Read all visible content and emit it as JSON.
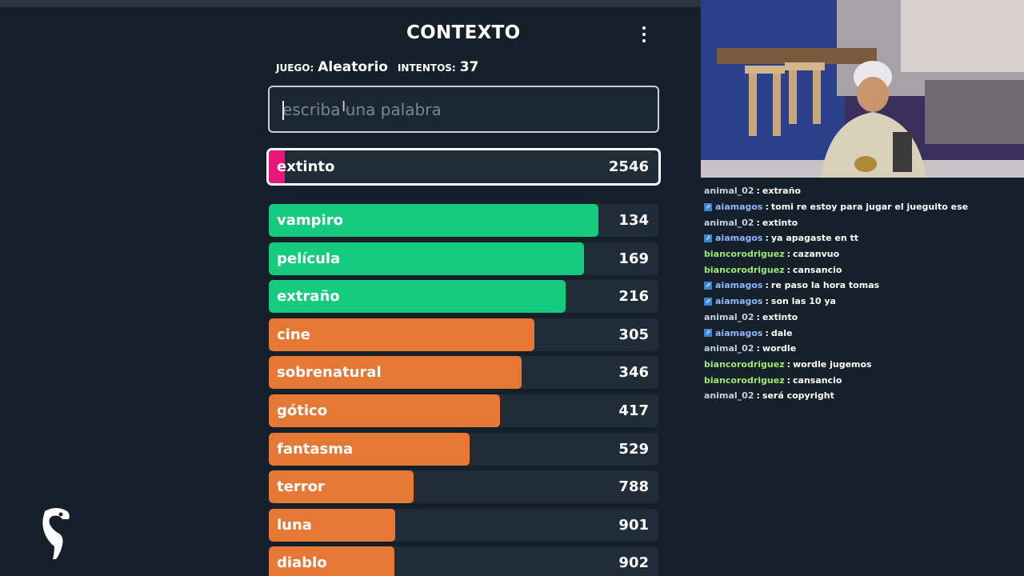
{
  "game": {
    "title": "CONTEXTO",
    "juego_label": "JUEGO:",
    "juego_value": "Aleatorio",
    "intentos_label": "INTENTOS:",
    "intentos_value": "37",
    "input_placeholder": "escriba una palabra",
    "current_guess": {
      "word": "extinto",
      "rank": "2546",
      "color": "#e8157a"
    },
    "guesses": [
      {
        "word": "vampiro",
        "rank": "134",
        "fill": 0.846,
        "color": "#15cc7e"
      },
      {
        "word": "película",
        "rank": "169",
        "fill": 0.809,
        "color": "#15cc7e"
      },
      {
        "word": "extraño",
        "rank": "216",
        "fill": 0.762,
        "color": "#15cc7e"
      },
      {
        "word": "cine",
        "rank": "305",
        "fill": 0.682,
        "color": "#e67835"
      },
      {
        "word": "sobrenatural",
        "rank": "346",
        "fill": 0.649,
        "color": "#e67835"
      },
      {
        "word": "gótico",
        "rank": "417",
        "fill": 0.593,
        "color": "#e67835"
      },
      {
        "word": "fantasma",
        "rank": "529",
        "fill": 0.515,
        "color": "#e67835"
      },
      {
        "word": "terror",
        "rank": "788",
        "fill": 0.372,
        "color": "#e67835"
      },
      {
        "word": "luna",
        "rank": "901",
        "fill": 0.325,
        "color": "#e67835"
      },
      {
        "word": "diablo",
        "rank": "902",
        "fill": 0.322,
        "color": "#e67835"
      }
    ]
  },
  "chat": {
    "messages": [
      {
        "user": "animal_02",
        "text": "extraño",
        "badge": false,
        "user_color": "#c8d0dc"
      },
      {
        "user": "aiamagos",
        "text": "tomi re estoy para jugar el jueguito ese",
        "badge": true,
        "user_color": "#8fb8ff"
      },
      {
        "user": "animal_02",
        "text": "extinto",
        "badge": false,
        "user_color": "#c8d0dc"
      },
      {
        "user": "aiamagos",
        "text": "ya apagaste en tt",
        "badge": true,
        "user_color": "#8fb8ff"
      },
      {
        "user": "biancorodriguez",
        "text": "cazanvuo",
        "badge": false,
        "user_color": "#9fe870"
      },
      {
        "user": "biancorodriguez",
        "text": "cansancio",
        "badge": false,
        "user_color": "#9fe870"
      },
      {
        "user": "aiamagos",
        "text": "re paso la hora tomas",
        "badge": true,
        "user_color": "#8fb8ff"
      },
      {
        "user": "aiamagos",
        "text": "son las 10 ya",
        "badge": true,
        "user_color": "#8fb8ff"
      },
      {
        "user": "animal_02",
        "text": "extinto",
        "badge": false,
        "user_color": "#c8d0dc"
      },
      {
        "user": "aiamagos",
        "text": "dale",
        "badge": true,
        "user_color": "#8fb8ff"
      },
      {
        "user": "animal_02",
        "text": "wordle",
        "badge": false,
        "user_color": "#c8d0dc"
      },
      {
        "user": "biancorodriguez",
        "text": "wordle jugemos",
        "badge": false,
        "user_color": "#9fe870"
      },
      {
        "user": "biancorodriguez",
        "text": "cansancio",
        "badge": false,
        "user_color": "#9fe870"
      },
      {
        "user": "animal_02",
        "text": "será copyright",
        "badge": false,
        "user_color": "#c8d0dc"
      }
    ]
  }
}
